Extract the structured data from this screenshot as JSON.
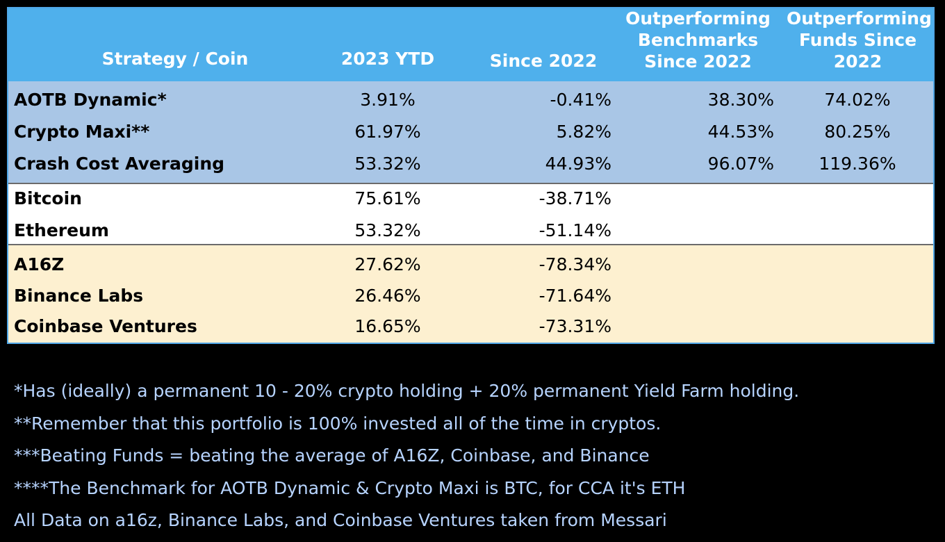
{
  "table": {
    "headers": {
      "name": [
        "Strategy / Coin"
      ],
      "ytd": [
        "2023 YTD"
      ],
      "since": [
        "Since 2022"
      ],
      "bench": [
        "Outperforming",
        "Benchmarks",
        "Since 2022"
      ],
      "funds": [
        "Outperforming",
        "Funds Since",
        "2022"
      ]
    },
    "strategies": [
      {
        "name": "AOTB Dynamic*",
        "ytd": "3.91%",
        "since": "-0.41%",
        "bench": "38.30%",
        "funds": "74.02%"
      },
      {
        "name": "Crypto Maxi**",
        "ytd": "61.97%",
        "since": "5.82%",
        "bench": "44.53%",
        "funds": "80.25%"
      },
      {
        "name": "Crash Cost Averaging",
        "ytd": "53.32%",
        "since": "44.93%",
        "bench": "96.07%",
        "funds": "119.36%"
      }
    ],
    "coins": [
      {
        "name": "Bitcoin",
        "ytd": "75.61%",
        "since": "-38.71%"
      },
      {
        "name": "Ethereum",
        "ytd": "53.32%",
        "since": "-51.14%"
      }
    ],
    "funds": [
      {
        "name": "A16Z",
        "ytd": "27.62%",
        "since": "-78.34%"
      },
      {
        "name": "Binance Labs",
        "ytd": "26.46%",
        "since": "-71.64%"
      },
      {
        "name": "Coinbase Ventures",
        "ytd": "16.65%",
        "since": "-73.31%"
      }
    ]
  },
  "notes": [
    "*Has (ideally) a permanent 10 - 20% crypto holding + 20% permanent Yield Farm holding.",
    "**Remember that this portfolio is 100% invested all of the time in cryptos.",
    "***Beating Funds = beating the average of A16Z, Coinbase, and Binance",
    "****The Benchmark for AOTB Dynamic & Crypto Maxi is BTC, for CCA it's ETH",
    "All Data on a16z, Binance Labs, and Coinbase Ventures taken from Messari"
  ],
  "colors": {
    "header_bg": "#4fb0ec",
    "strategy_bg": "#a9c6e6",
    "coin_bg": "#ffffff",
    "fund_bg": "#fdf0d0",
    "note_text": "#b7d4ff"
  }
}
